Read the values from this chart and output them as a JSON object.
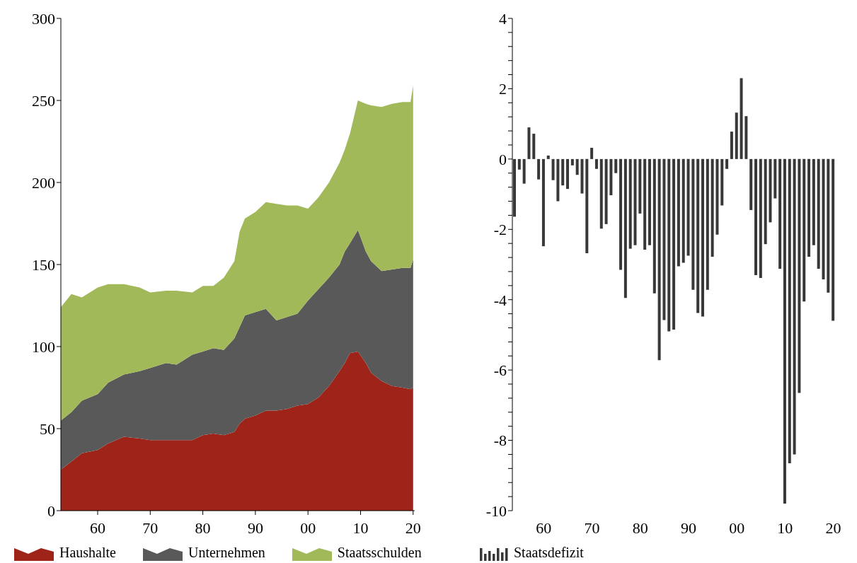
{
  "chart_data": [
    {
      "type": "area",
      "stacked": true,
      "legend": "bottom",
      "x": [
        1953,
        1955,
        1957,
        1960,
        1962,
        1965,
        1968,
        1970,
        1973,
        1975,
        1978,
        1980,
        1982,
        1984,
        1986,
        1987,
        1988,
        1990,
        1992,
        1994,
        1996,
        1998,
        2000,
        2002,
        2004,
        2006,
        2007,
        2008,
        2009.5,
        2011,
        2012,
        2014,
        2016,
        2018,
        2019.5,
        2020
      ],
      "series": [
        {
          "name": "Haushalte",
          "color": "#9e2318",
          "values": [
            25,
            30,
            35,
            37,
            41,
            45,
            44,
            43,
            43,
            43,
            43,
            46,
            47,
            46,
            48,
            53,
            56,
            58,
            61,
            61,
            62,
            64,
            65,
            69,
            76,
            85,
            90,
            96,
            97,
            90,
            84,
            79,
            76,
            75,
            74,
            75
          ]
        },
        {
          "name": "Unternehmen",
          "color": "#595959",
          "values": [
            30,
            30,
            32,
            34,
            37,
            38,
            41,
            44,
            47,
            46,
            52,
            51,
            52,
            52,
            57,
            59,
            63,
            63,
            62,
            55,
            56,
            56,
            63,
            66,
            66,
            65,
            68,
            67,
            74,
            68,
            68,
            67,
            71,
            73,
            74,
            78
          ]
        },
        {
          "name": "Staatsschulden",
          "color": "#a2b95a",
          "values": [
            69,
            72,
            63,
            65,
            60,
            55,
            51,
            46,
            44,
            45,
            38,
            40,
            38,
            44,
            47,
            58,
            59,
            61,
            65,
            71,
            68,
            66,
            56,
            56,
            58,
            62,
            62,
            67,
            79,
            90,
            95,
            100,
            101,
            101,
            101,
            106
          ]
        }
      ],
      "xlim": [
        1953,
        2020.3
      ],
      "xticks": [
        {
          "value": 1960,
          "label": "60"
        },
        {
          "value": 1970,
          "label": "70"
        },
        {
          "value": 1980,
          "label": "80"
        },
        {
          "value": 1990,
          "label": "90"
        },
        {
          "value": 2000,
          "label": "00"
        },
        {
          "value": 2010,
          "label": "10"
        },
        {
          "value": 2020,
          "label": "20"
        }
      ],
      "ylim": [
        0,
        300
      ],
      "yticks": [
        0,
        50,
        100,
        150,
        200,
        250,
        300
      ]
    },
    {
      "type": "bar",
      "legend": "bottom",
      "x": [
        1954,
        1955,
        1956,
        1957,
        1958,
        1959,
        1960,
        1961,
        1962,
        1963,
        1964,
        1965,
        1966,
        1967,
        1968,
        1969,
        1970,
        1971,
        1972,
        1973,
        1974,
        1975,
        1976,
        1977,
        1978,
        1979,
        1980,
        1981,
        1982,
        1983,
        1984,
        1985,
        1986,
        1987,
        1988,
        1989,
        1990,
        1991,
        1992,
        1993,
        1994,
        1995,
        1996,
        1997,
        1998,
        1999,
        2000,
        2001,
        2002,
        2003,
        2004,
        2005,
        2006,
        2007,
        2008,
        2009,
        2010,
        2011,
        2012,
        2013,
        2014,
        2015,
        2016,
        2017,
        2018,
        2019,
        2020
      ],
      "series": [
        {
          "name": "Staatsdefizit",
          "color": "#383838",
          "values": [
            -1.64,
            -0.3,
            -0.7,
            0.9,
            0.72,
            -0.58,
            -2.48,
            0.1,
            -0.6,
            -1.2,
            -0.75,
            -0.85,
            -0.18,
            -0.45,
            -0.98,
            -2.68,
            0.32,
            -0.28,
            -1.98,
            -1.85,
            -1.03,
            -0.4,
            -3.15,
            -3.95,
            -2.55,
            -2.45,
            -1.55,
            -2.58,
            -2.45,
            -3.82,
            -5.72,
            -4.58,
            -4.9,
            -4.85,
            -3.05,
            -2.95,
            -2.75,
            -3.72,
            -4.38,
            -4.48,
            -3.72,
            -2.78,
            -2.15,
            -1.32,
            -0.28,
            0.78,
            1.32,
            2.3,
            1.22,
            -1.45,
            -3.3,
            -3.38,
            -2.42,
            -1.8,
            -1.12,
            -3.12,
            -9.8,
            -8.65,
            -8.4,
            -6.65,
            -4.05,
            -2.78,
            -2.45,
            -3.12,
            -3.42,
            -3.8,
            -4.6
          ]
        }
      ],
      "xlim": [
        1953.5,
        2020.8
      ],
      "xticks": [
        {
          "value": 1960,
          "label": "60"
        },
        {
          "value": 1970,
          "label": "70"
        },
        {
          "value": 1980,
          "label": "80"
        },
        {
          "value": 1990,
          "label": "90"
        },
        {
          "value": 2000,
          "label": "00"
        },
        {
          "value": 2010,
          "label": "10"
        },
        {
          "value": 2020,
          "label": "20"
        }
      ],
      "ylim": [
        -10,
        4
      ],
      "yticks": [
        -10,
        {
          "value": -9.6,
          "label": null
        },
        {
          "value": -9.2,
          "label": null
        },
        {
          "value": -8.8,
          "label": null
        },
        {
          "value": -8.4,
          "label": null
        },
        -8,
        {
          "value": -7.6,
          "label": null
        },
        {
          "value": -7.2,
          "label": null
        },
        {
          "value": -6.8,
          "label": null
        },
        {
          "value": -6.4,
          "label": null
        },
        -6,
        {
          "value": -5.6,
          "label": null
        },
        {
          "value": -5.2,
          "label": null
        },
        {
          "value": -4.8,
          "label": null
        },
        {
          "value": -4.4,
          "label": null
        },
        -4,
        {
          "value": -3.6,
          "label": null
        },
        {
          "value": -3.2,
          "label": null
        },
        {
          "value": -2.8,
          "label": null
        },
        {
          "value": -2.4,
          "label": null
        },
        -2,
        {
          "value": -1.6,
          "label": null
        },
        {
          "value": -1.2,
          "label": null
        },
        {
          "value": -0.8,
          "label": null
        },
        {
          "value": -0.4,
          "label": null
        },
        0,
        {
          "value": 0.4,
          "label": null
        },
        {
          "value": 0.8,
          "label": null
        },
        {
          "value": 1.2,
          "label": null
        },
        {
          "value": 1.6,
          "label": null
        },
        2,
        {
          "value": 2.4,
          "label": null
        },
        {
          "value": 2.8,
          "label": null
        },
        {
          "value": 3.2,
          "label": null
        },
        {
          "value": 3.6,
          "label": null
        },
        4
      ]
    }
  ]
}
